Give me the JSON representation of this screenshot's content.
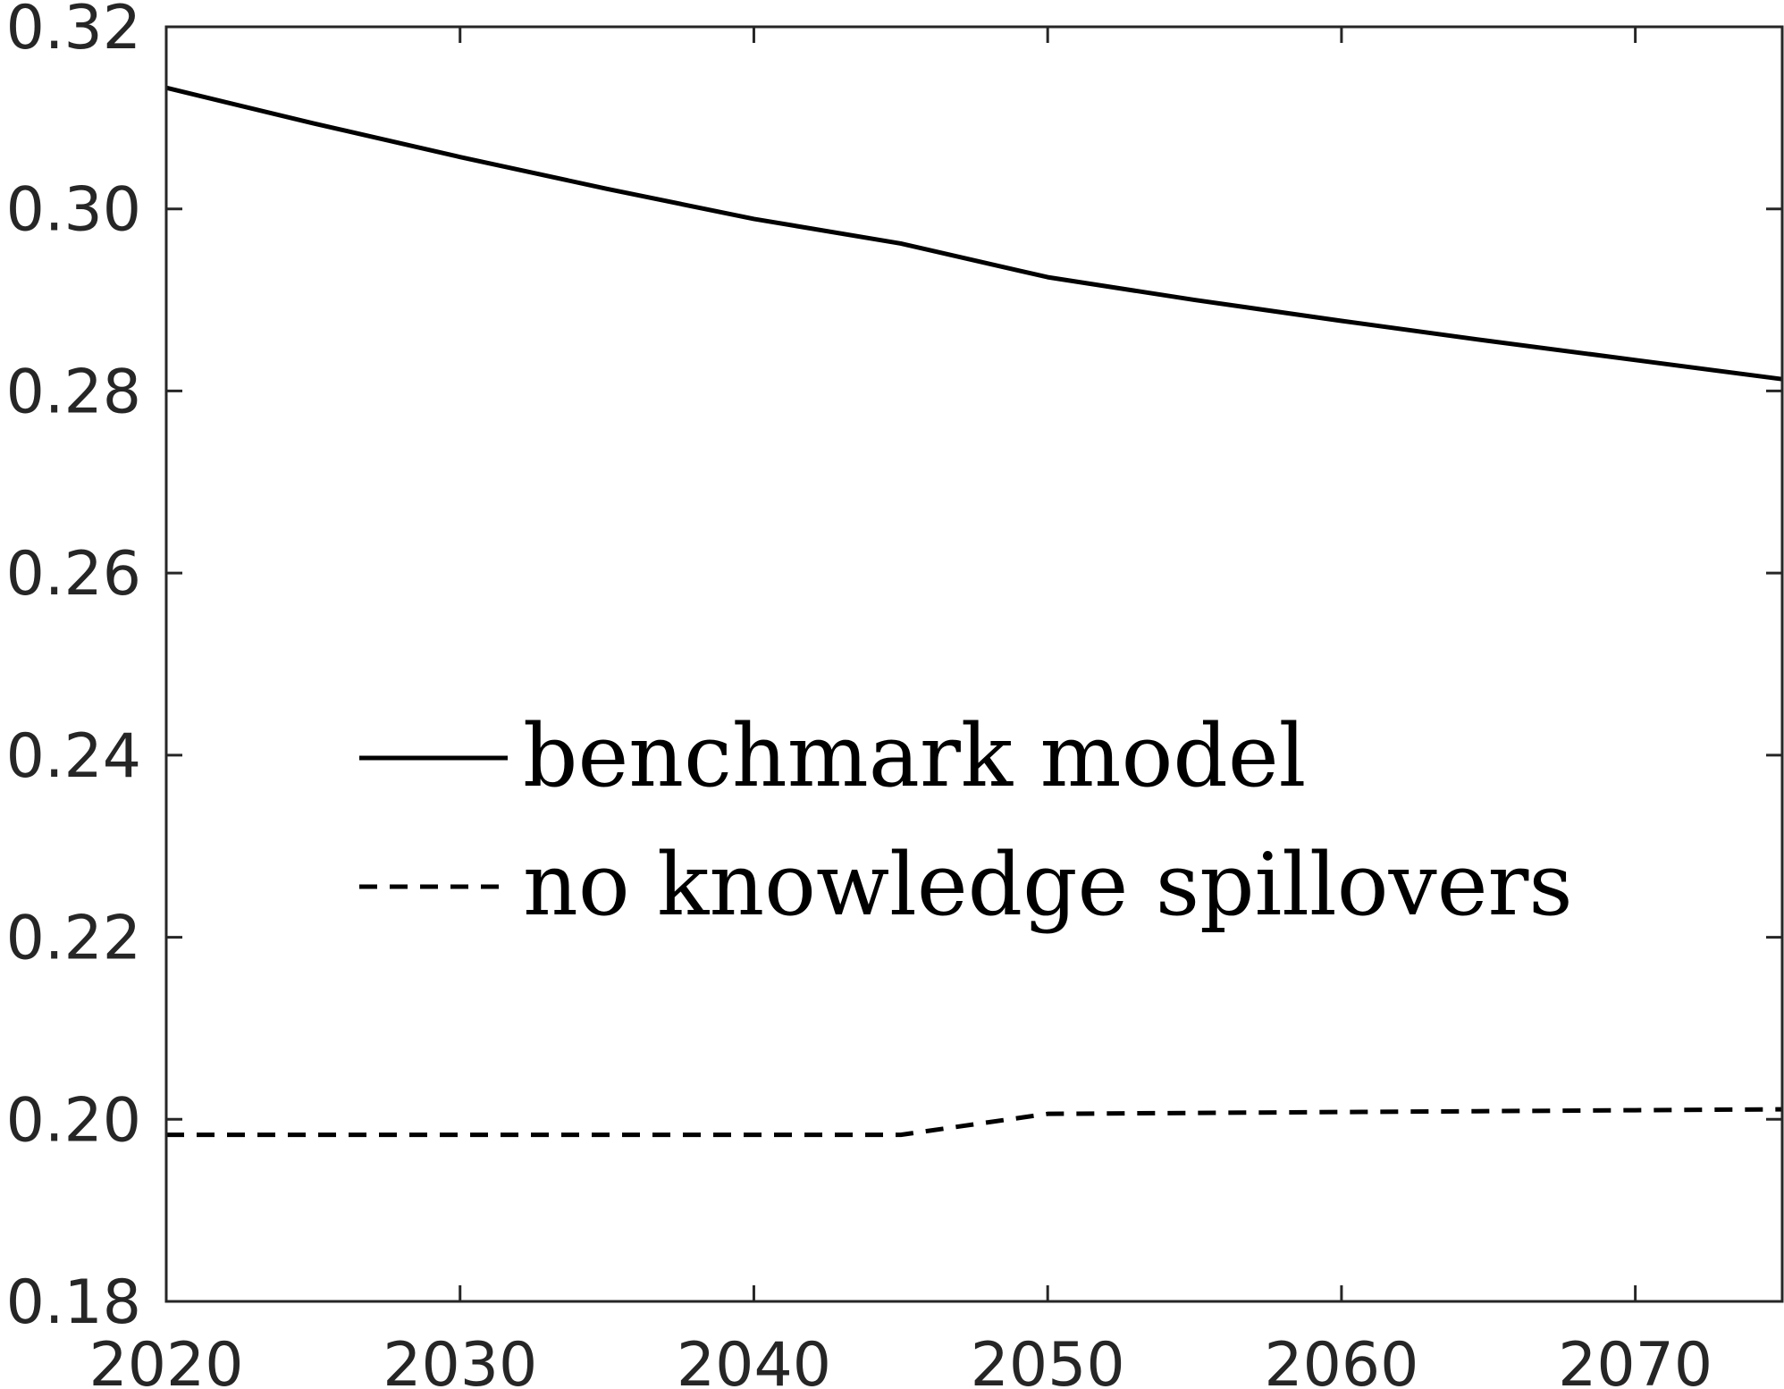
{
  "chart_data": {
    "type": "line",
    "title": "",
    "xlabel": "",
    "ylabel": "",
    "xlim": [
      2020,
      2075
    ],
    "ylim": [
      0.18,
      0.32
    ],
    "x_ticks": [
      "2020",
      "2030",
      "2040",
      "2050",
      "2060",
      "2070"
    ],
    "y_ticks": [
      "0.18",
      "0.20",
      "0.22",
      "0.24",
      "0.26",
      "0.28",
      "0.30",
      "0.32"
    ],
    "grid": false,
    "legend_position": "center",
    "series": [
      {
        "name": "benchmark model",
        "line_style": "solid",
        "color": "#000000",
        "x": [
          2020,
          2025,
          2030,
          2035,
          2040,
          2045,
          2050,
          2055,
          2060,
          2065,
          2070,
          2075
        ],
        "y": [
          0.3133,
          0.3094,
          0.3057,
          0.3022,
          0.2989,
          0.2962,
          0.2925,
          0.29,
          0.2877,
          0.2855,
          0.2834,
          0.2813
        ]
      },
      {
        "name": "no knowledge spillovers",
        "line_style": "dashed",
        "color": "#000000",
        "x": [
          2020,
          2025,
          2030,
          2035,
          2040,
          2045,
          2050,
          2055,
          2060,
          2065,
          2070,
          2075
        ],
        "y": [
          0.1983,
          0.1983,
          0.1983,
          0.1983,
          0.1983,
          0.1983,
          0.2006,
          0.2007,
          0.2008,
          0.2009,
          0.201,
          0.2011
        ]
      }
    ]
  }
}
